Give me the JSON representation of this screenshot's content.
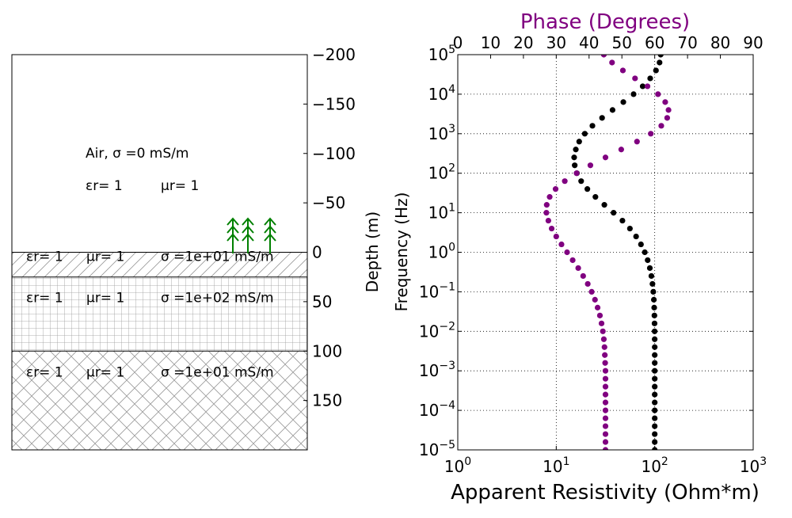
{
  "colors": {
    "phase": "#800080",
    "resistivity": "#000000",
    "trees": "#008000",
    "line": "#000000",
    "hatch": "#999999"
  },
  "chart_data": [
    {
      "type": "layered-earth-model",
      "ylabel": "Depth (m)",
      "ylim": [
        -200,
        200
      ],
      "y_ticks": [
        -200,
        -150,
        -100,
        -50,
        0,
        50,
        100,
        150
      ],
      "y_tick_labels": [
        "−200",
        "−150",
        "−100",
        "−50",
        "0",
        "50",
        "100",
        "150"
      ],
      "layers": [
        {
          "top": -200,
          "bottom": 0,
          "hatch": "none",
          "label_line1": "Air, σ =0 mS/m",
          "eps_label": "εr= 1",
          "mu_label": "μr= 1"
        },
        {
          "top": 0,
          "bottom": 25,
          "hatch": "diagonal",
          "eps_label": "εr= 1",
          "mu_label": "μr= 1",
          "sigma_label": "σ =1e+01 mS/m"
        },
        {
          "top": 25,
          "bottom": 100,
          "hatch": "grid",
          "eps_label": "εr= 1",
          "mu_label": "μr= 1",
          "sigma_label": "σ =1e+02 mS/m"
        },
        {
          "top": 100,
          "bottom": 200,
          "hatch": "crosshatch",
          "eps_label": "εr= 1",
          "mu_label": "μr= 1",
          "sigma_label": "σ =1e+01 mS/m"
        }
      ],
      "receivers": {
        "count": 3,
        "icon": "tree-antenna-icon"
      }
    },
    {
      "type": "scatter",
      "ylabel": "Frequency (Hz)",
      "xlabel": "Apparent Resistivity (Ohm*m)",
      "x2label": "Phase (Degrees)",
      "y_scale": "log",
      "ylim": [
        1e-05,
        100000.0
      ],
      "xlim": [
        1,
        1000
      ],
      "x2lim": [
        0,
        90
      ],
      "grid": true,
      "y_tick_exponents": [
        "-5",
        "-4",
        "-3",
        "-2",
        "-1",
        "0",
        "1",
        "2",
        "3",
        "4",
        "5"
      ],
      "x_tick_exponents": [
        "0",
        "1",
        "2",
        "3"
      ],
      "x2_ticks": [
        "0",
        "10",
        "20",
        "30",
        "40",
        "50",
        "60",
        "70",
        "80",
        "90"
      ],
      "series": [
        {
          "quantity": "apparent_resistivity",
          "points": [
            [
              100,
              -5
            ],
            [
              100,
              -4.8
            ],
            [
              100,
              -4.6
            ],
            [
              100,
              -4.4
            ],
            [
              100,
              -4.2
            ],
            [
              100,
              -4
            ],
            [
              100,
              -3.8
            ],
            [
              100,
              -3.6
            ],
            [
              100,
              -3.4
            ],
            [
              100,
              -3.2
            ],
            [
              100,
              -3
            ],
            [
              100,
              -2.8
            ],
            [
              100,
              -2.6
            ],
            [
              100,
              -2.4
            ],
            [
              99.9,
              -2.2
            ],
            [
              99.8,
              -2
            ],
            [
              99.6,
              -1.8
            ],
            [
              99.3,
              -1.6
            ],
            [
              98.8,
              -1.4
            ],
            [
              98,
              -1.2
            ],
            [
              96.7,
              -1
            ],
            [
              94.9,
              -0.8
            ],
            [
              92.5,
              -0.6
            ],
            [
              89.2,
              -0.4
            ],
            [
              84.8,
              -0.2
            ],
            [
              79.3,
              0
            ],
            [
              72.5,
              0.2
            ],
            [
              64.7,
              0.4
            ],
            [
              56,
              0.6
            ],
            [
              47,
              0.8
            ],
            [
              38.2,
              1
            ],
            [
              30.8,
              1.2
            ],
            [
              25,
              1.4
            ],
            [
              20.7,
              1.6
            ],
            [
              17.9,
              1.8
            ],
            [
              16.2,
              2
            ],
            [
              15.4,
              2.2
            ],
            [
              15.2,
              2.4
            ],
            [
              15.8,
              2.6
            ],
            [
              17.1,
              2.8
            ],
            [
              19.5,
              3
            ],
            [
              23.3,
              3.2
            ],
            [
              29.2,
              3.4
            ],
            [
              37.3,
              3.6
            ],
            [
              48,
              3.8
            ],
            [
              61,
              4
            ],
            [
              75.5,
              4.2
            ],
            [
              90,
              4.4
            ],
            [
              103,
              4.6
            ],
            [
              112,
              4.8
            ],
            [
              115,
              5
            ]
          ]
        },
        {
          "quantity": "phase",
          "points": [
            [
              45,
              -5
            ],
            [
              45,
              -4.8
            ],
            [
              45,
              -4.6
            ],
            [
              45,
              -4.4
            ],
            [
              45,
              -4.2
            ],
            [
              45,
              -4
            ],
            [
              45,
              -3.8
            ],
            [
              45,
              -3.6
            ],
            [
              45,
              -3.4
            ],
            [
              45,
              -3.2
            ],
            [
              45,
              -3
            ],
            [
              44.9,
              -2.8
            ],
            [
              44.8,
              -2.6
            ],
            [
              44.7,
              -2.4
            ],
            [
              44.5,
              -2.2
            ],
            [
              44.2,
              -2
            ],
            [
              43.8,
              -1.8
            ],
            [
              43.3,
              -1.6
            ],
            [
              42.6,
              -1.4
            ],
            [
              41.8,
              -1.2
            ],
            [
              40.8,
              -1
            ],
            [
              39.6,
              -0.8
            ],
            [
              38.2,
              -0.6
            ],
            [
              36.7,
              -0.4
            ],
            [
              35,
              -0.2
            ],
            [
              33.3,
              0
            ],
            [
              31.6,
              0.2
            ],
            [
              30,
              0.4
            ],
            [
              28.6,
              0.6
            ],
            [
              27.6,
              0.8
            ],
            [
              27,
              1
            ],
            [
              27.1,
              1.2
            ],
            [
              28,
              1.4
            ],
            [
              29.8,
              1.6
            ],
            [
              32.6,
              1.8
            ],
            [
              36.2,
              2
            ],
            [
              40.4,
              2.2
            ],
            [
              45,
              2.4
            ],
            [
              49.8,
              2.6
            ],
            [
              54.6,
              2.8
            ],
            [
              58.8,
              3
            ],
            [
              62,
              3.2
            ],
            [
              63.8,
              3.4
            ],
            [
              64.2,
              3.6
            ],
            [
              63.2,
              3.8
            ],
            [
              61,
              4
            ],
            [
              57.8,
              4.2
            ],
            [
              54,
              4.4
            ],
            [
              50.3,
              4.6
            ],
            [
              47,
              4.8
            ],
            [
              44.5,
              5
            ]
          ]
        }
      ]
    }
  ]
}
